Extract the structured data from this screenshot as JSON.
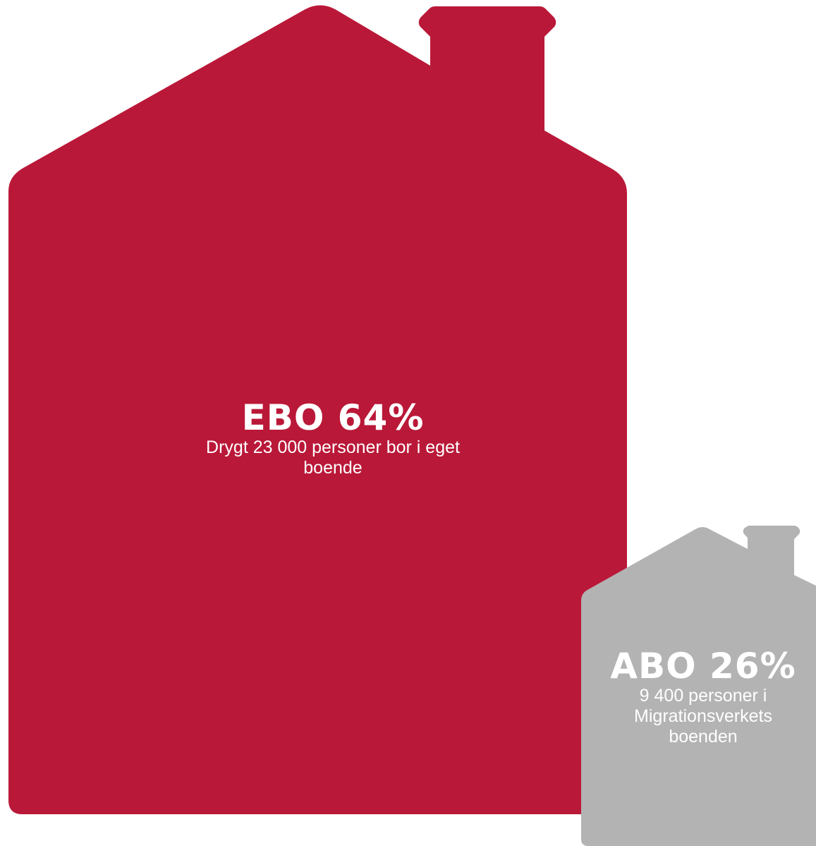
{
  "chart_data": {
    "type": "pictogram",
    "items": [
      {
        "name": "EBO",
        "value": 64,
        "unit": "%",
        "label": "EBO 64%",
        "description": "Drygt 23 000 personer bor i eget boende",
        "color": "#ba1838",
        "icon": "house-icon"
      },
      {
        "name": "ABO",
        "value": 26,
        "unit": "%",
        "label": "ABO 26%",
        "description": "9 400 personer i Migrationsverkets boenden",
        "color": "#b3b3b3",
        "icon": "house-icon"
      }
    ]
  }
}
